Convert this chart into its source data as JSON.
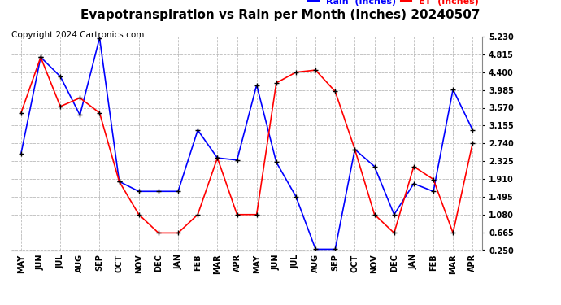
{
  "title": "Evapotranspiration vs Rain per Month (Inches) 20240507",
  "copyright": "Copyright 2024 Cartronics.com",
  "months": [
    "MAY",
    "JUN",
    "JUL",
    "AUG",
    "SEP",
    "OCT",
    "NOV",
    "DEC",
    "JAN",
    "FEB",
    "MAR",
    "APR",
    "MAY",
    "JUN",
    "JUL",
    "AUG",
    "SEP",
    "OCT",
    "NOV",
    "DEC",
    "JAN",
    "FEB",
    "MAR",
    "APR"
  ],
  "rain_inches": [
    2.5,
    4.75,
    4.3,
    3.4,
    5.2,
    1.85,
    1.62,
    1.62,
    1.62,
    3.05,
    2.4,
    2.35,
    4.1,
    2.3,
    1.5,
    0.27,
    0.27,
    2.6,
    2.2,
    1.08,
    1.8,
    1.62,
    4.0,
    3.05
  ],
  "et_inches": [
    3.45,
    4.75,
    3.6,
    3.8,
    3.45,
    1.85,
    1.08,
    0.65,
    0.65,
    1.08,
    2.4,
    1.08,
    1.08,
    4.15,
    4.4,
    4.45,
    3.95,
    2.6,
    1.08,
    0.65,
    2.2,
    1.9,
    0.65,
    2.75
  ],
  "rain_color": "#0000FF",
  "et_color": "#FF0000",
  "bg_color": "#FFFFFF",
  "grid_color": "#BBBBBB",
  "ymin": 0.25,
  "ymax": 5.23,
  "yticks": [
    0.25,
    0.665,
    1.08,
    1.495,
    1.91,
    2.325,
    2.74,
    3.155,
    3.57,
    3.985,
    4.4,
    4.815,
    5.23
  ],
  "title_fontsize": 11,
  "copyright_fontsize": 7.5,
  "legend_rain": "Rain  (Inches)",
  "legend_et": "ET  (Inches)",
  "marker": "+",
  "marker_color": "#000000",
  "marker_size": 5,
  "linewidth": 1.2
}
